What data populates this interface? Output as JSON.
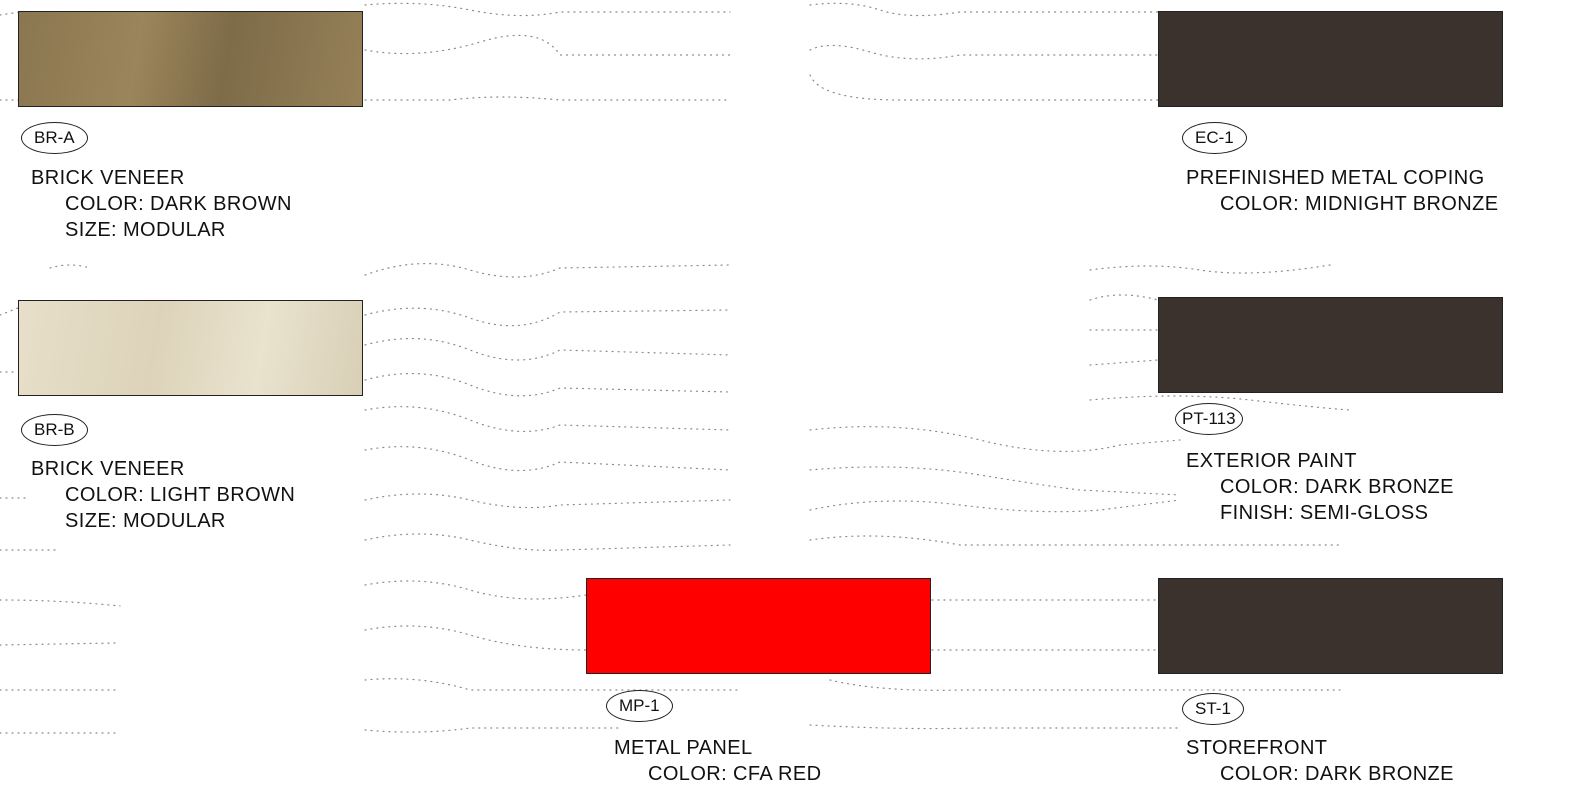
{
  "materials": [
    {
      "id": "BR-A",
      "title": "BRICK VENEER",
      "lines": [
        "COLOR:  DARK BROWN",
        "SIZE: MODULAR"
      ],
      "color": "#8a7650"
    },
    {
      "id": "BR-B",
      "title": "BRICK VENEER",
      "lines": [
        "COLOR: LIGHT BROWN",
        "SIZE: MODULAR"
      ],
      "color": "#e2d9c2"
    },
    {
      "id": "EC-1",
      "title": "PREFINISHED METAL COPING",
      "lines": [
        "COLOR:  MIDNIGHT BRONZE"
      ],
      "color": "#3b322d"
    },
    {
      "id": "PT-113",
      "title": "EXTERIOR PAINT",
      "lines": [
        "COLOR:  DARK BRONZE",
        "FINISH: SEMI-GLOSS"
      ],
      "color": "#3b322d"
    },
    {
      "id": "MP-1",
      "title": "METAL PANEL",
      "lines": [
        "COLOR: CFA RED"
      ],
      "color": "#ff0000"
    },
    {
      "id": "ST-1",
      "title": "STOREFRONT",
      "lines": [
        "COLOR:  DARK BRONZE"
      ],
      "color": "#3b322d"
    }
  ]
}
